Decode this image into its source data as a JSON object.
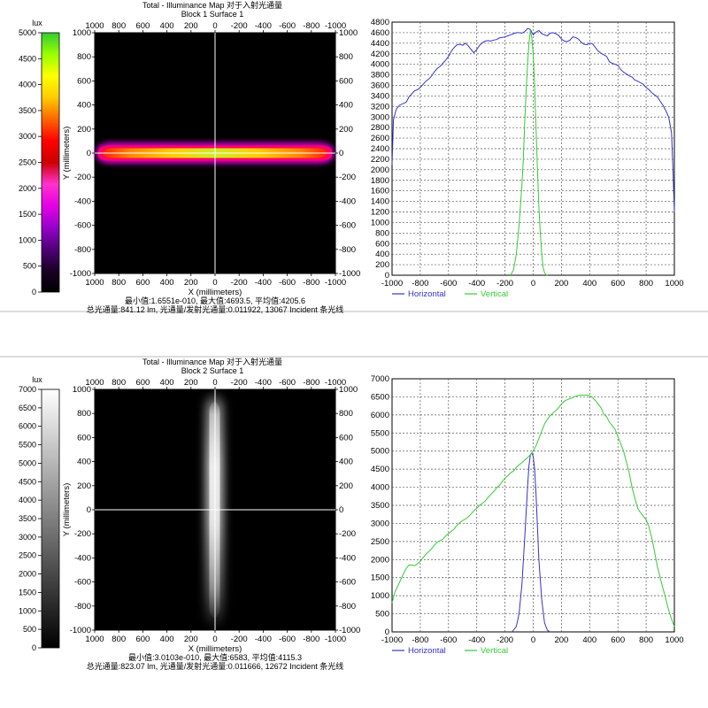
{
  "chart_data": [
    {
      "type": "heatmap",
      "title": "Total - Illuminance Map 对于入射光通量",
      "subtitle": "Block 1 Surface 1",
      "xlabel": "X (millimeters)",
      "ylabel": "Y (millimeters)",
      "x_ticks": [
        "1000",
        "800",
        "600",
        "400",
        "200",
        "0",
        "-200",
        "-400",
        "-600",
        "-800",
        "-1000"
      ],
      "y_ticks": [
        "1000",
        "800",
        "600",
        "400",
        "200",
        "0",
        "-200",
        "-400",
        "-600",
        "-800",
        "-1000"
      ],
      "colorbar": {
        "unit": "lux",
        "ticks": [
          "5000",
          "4500",
          "4000",
          "3500",
          "3000",
          "2500",
          "2000",
          "1500",
          "1000",
          "500",
          "0"
        ],
        "colors": [
          "#000000",
          "#1a0026",
          "#50007a",
          "#9900cc",
          "#e600e6",
          "#ff33cc",
          "#cc0000",
          "#ff0000",
          "#ff6600",
          "#ffcc00",
          "#ffff00",
          "#99ff00",
          "#33cc33"
        ]
      },
      "stats_line1": "最小值:1.6551e-010, 最大值:4693.5, 平均值:4205.6",
      "stats_line2": "总光通量:841.12 lm, 光通量/发射光通量:0.011922, 13067 Incident 条光线"
    },
    {
      "type": "line",
      "x_ticks": [
        "-1000",
        "-800",
        "-600",
        "-400",
        "-200",
        "0",
        "200",
        "400",
        "600",
        "800",
        "1000"
      ],
      "y_ticks": [
        "4800",
        "4600",
        "4400",
        "4200",
        "4000",
        "3800",
        "3600",
        "3400",
        "3200",
        "3000",
        "2800",
        "2600",
        "2400",
        "2200",
        "2000",
        "1800",
        "1600",
        "1400",
        "1200",
        "1000",
        "800",
        "600",
        "400",
        "200",
        "0"
      ],
      "xlim": [
        -1000,
        1000
      ],
      "ylim": [
        0,
        4800
      ],
      "series": [
        {
          "name": "Horizontal",
          "color": "#3333cc",
          "x": [
            -1000,
            -990,
            -970,
            -950,
            -920,
            -900,
            -880,
            -860,
            -840,
            -820,
            -800,
            -780,
            -760,
            -740,
            -720,
            -700,
            -680,
            -660,
            -640,
            -620,
            -600,
            -580,
            -560,
            -540,
            -520,
            -500,
            -480,
            -460,
            -440,
            -420,
            -400,
            -380,
            -360,
            -340,
            -320,
            -300,
            -280,
            -260,
            -240,
            -220,
            -200,
            -180,
            -160,
            -140,
            -120,
            -100,
            -80,
            -60,
            -40,
            -20,
            0,
            20,
            40,
            60,
            80,
            100,
            120,
            140,
            160,
            180,
            200,
            220,
            240,
            260,
            280,
            300,
            320,
            340,
            360,
            380,
            400,
            420,
            440,
            460,
            480,
            500,
            520,
            540,
            560,
            580,
            600,
            620,
            640,
            660,
            680,
            700,
            720,
            740,
            760,
            780,
            800,
            820,
            840,
            860,
            880,
            900,
            920,
            940,
            960,
            980,
            990,
            1000
          ],
          "values": [
            2100,
            2950,
            3150,
            3220,
            3260,
            3280,
            3380,
            3440,
            3500,
            3520,
            3560,
            3620,
            3680,
            3720,
            3780,
            3860,
            3920,
            3960,
            4020,
            4080,
            4150,
            4250,
            4320,
            4370,
            4380,
            4360,
            4400,
            4350,
            4280,
            4220,
            4280,
            4360,
            4410,
            4440,
            4450,
            4440,
            4460,
            4470,
            4500,
            4510,
            4520,
            4540,
            4560,
            4580,
            4600,
            4600,
            4590,
            4620,
            4680,
            4660,
            4560,
            4610,
            4640,
            4580,
            4560,
            4540,
            4590,
            4600,
            4580,
            4550,
            4480,
            4440,
            4430,
            4460,
            4520,
            4510,
            4480,
            4420,
            4380,
            4370,
            4400,
            4390,
            4320,
            4250,
            4210,
            4180,
            4150,
            4050,
            4020,
            4000,
            3980,
            3900,
            3850,
            3820,
            3780,
            3760,
            3700,
            3680,
            3650,
            3620,
            3560,
            3520,
            3460,
            3420,
            3380,
            3300,
            3220,
            3120,
            3000,
            2700,
            2000,
            1200
          ]
        },
        {
          "name": "Vertical",
          "color": "#33cc33",
          "x": [
            -160,
            -140,
            -120,
            -100,
            -80,
            -70,
            -60,
            -50,
            -40,
            -30,
            -20,
            -10,
            0,
            10,
            20,
            30,
            40,
            50,
            60,
            70,
            80,
            90,
            100
          ],
          "values": [
            0,
            100,
            400,
            950,
            1700,
            2200,
            2900,
            3500,
            4000,
            4400,
            4650,
            4500,
            4200,
            3600,
            2800,
            2000,
            1300,
            800,
            400,
            150,
            50,
            10,
            0
          ]
        }
      ]
    },
    {
      "type": "heatmap",
      "title": "Total - Illuminance Map 对于入射光通量",
      "subtitle": "Block 2 Surface 1",
      "xlabel": "X (millimeters)",
      "ylabel": "Y (millimeters)",
      "x_ticks": [
        "1000",
        "800",
        "600",
        "400",
        "200",
        "0",
        "-200",
        "-400",
        "-600",
        "-800",
        "-1000"
      ],
      "y_ticks": [
        "1000",
        "800",
        "600",
        "400",
        "200",
        "0",
        "-200",
        "-400",
        "-600",
        "-800",
        "-1000"
      ],
      "colorbar": {
        "unit": "lux",
        "ticks": [
          "7000",
          "6500",
          "6000",
          "5500",
          "5000",
          "4500",
          "4000",
          "3500",
          "3000",
          "2500",
          "2000",
          "1500",
          "1000",
          "500",
          "0"
        ],
        "colors": [
          "#000000",
          "#ffffff"
        ]
      },
      "stats_line1": "最小值:3.0103e-010, 最大值:6583, 平均值:4115.3",
      "stats_line2": "总光通量:823.07 lm, 光通量/发射光通量:0.011666, 12672 Incident 条光线"
    },
    {
      "type": "line",
      "x_ticks": [
        "-1000",
        "-800",
        "-600",
        "-400",
        "-200",
        "0",
        "200",
        "400",
        "600",
        "800",
        "1000"
      ],
      "y_ticks": [
        "7000",
        "6500",
        "6000",
        "5500",
        "5000",
        "4500",
        "4000",
        "3500",
        "3000",
        "2500",
        "2000",
        "1500",
        "1000",
        "500",
        "0"
      ],
      "xlim": [
        -1000,
        1000
      ],
      "ylim": [
        0,
        7000
      ],
      "series": [
        {
          "name": "Horizontal",
          "color": "#3333cc",
          "x": [
            -150,
            -120,
            -100,
            -80,
            -60,
            -40,
            -30,
            -20,
            -10,
            0,
            10,
            20,
            30,
            40,
            60,
            80,
            100,
            120
          ],
          "values": [
            0,
            150,
            500,
            1300,
            2600,
            4000,
            4600,
            4900,
            4950,
            4850,
            4500,
            3800,
            2900,
            2000,
            900,
            250,
            50,
            0
          ]
        },
        {
          "name": "Vertical",
          "color": "#33cc33",
          "x": [
            -1000,
            -980,
            -950,
            -920,
            -900,
            -880,
            -860,
            -840,
            -820,
            -800,
            -780,
            -760,
            -740,
            -720,
            -700,
            -680,
            -660,
            -640,
            -620,
            -600,
            -580,
            -560,
            -540,
            -520,
            -500,
            -480,
            -460,
            -440,
            -420,
            -400,
            -380,
            -360,
            -340,
            -320,
            -300,
            -280,
            -260,
            -240,
            -220,
            -200,
            -180,
            -160,
            -140,
            -120,
            -100,
            -80,
            -60,
            -40,
            -20,
            0,
            20,
            40,
            60,
            80,
            100,
            120,
            140,
            160,
            180,
            200,
            220,
            240,
            260,
            280,
            300,
            320,
            340,
            360,
            380,
            400,
            420,
            440,
            460,
            480,
            500,
            520,
            540,
            560,
            580,
            600,
            620,
            640,
            660,
            680,
            700,
            720,
            740,
            760,
            780,
            800,
            820,
            840,
            860,
            880,
            900,
            920,
            940,
            960,
            980,
            1000
          ],
          "values": [
            800,
            1100,
            1350,
            1600,
            1750,
            1850,
            1850,
            1830,
            1880,
            1950,
            2050,
            2150,
            2220,
            2300,
            2400,
            2480,
            2520,
            2560,
            2650,
            2720,
            2780,
            2850,
            2950,
            3020,
            3080,
            3120,
            3180,
            3260,
            3350,
            3420,
            3500,
            3560,
            3620,
            3720,
            3800,
            3880,
            3980,
            4050,
            4150,
            4250,
            4320,
            4400,
            4450,
            4550,
            4620,
            4680,
            4750,
            4820,
            4900,
            5000,
            5150,
            5350,
            5550,
            5750,
            5880,
            5980,
            6050,
            6120,
            6200,
            6300,
            6380,
            6420,
            6450,
            6480,
            6520,
            6540,
            6550,
            6550,
            6550,
            6530,
            6480,
            6400,
            6300,
            6200,
            6020,
            5950,
            5800,
            5700,
            5600,
            5400,
            5200,
            5000,
            4700,
            4400,
            4000,
            3700,
            3420,
            3300,
            3200,
            3100,
            2900,
            2600,
            2200,
            1800,
            1500,
            1200,
            900,
            600,
            350,
            150
          ]
        }
      ]
    }
  ]
}
